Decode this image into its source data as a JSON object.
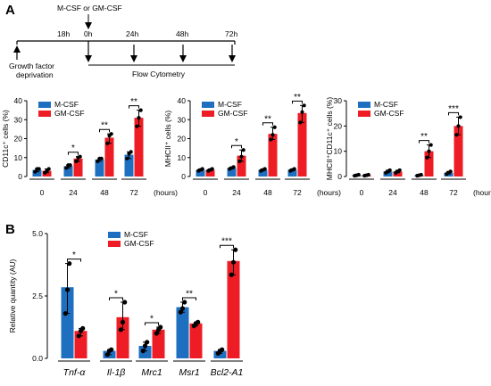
{
  "panel_a": {
    "letter": "A",
    "timeline": {
      "treatment_label": "M-CSF or GM-CSF",
      "deprivation_label_line1": "Growth factor",
      "deprivation_label_line2": "deprivation",
      "time_labels": [
        "18h",
        "0h",
        "24h",
        "48h",
        "72h"
      ],
      "flow_label": "Flow Cytometry"
    }
  },
  "panel_b": {
    "letter": "B"
  },
  "colors": {
    "mcsf": "#1f6fc0",
    "gmcsf": "#ee1c24"
  },
  "chart_data": [
    {
      "type": "bar",
      "id": "cd11c",
      "categories": [
        "0",
        "24",
        "48",
        "72"
      ],
      "extra_x_label": "(hours)",
      "ylabel": "CD11c⁺ cells (%)",
      "ylim": [
        0,
        40
      ],
      "yticks": [
        "0",
        "10",
        "20",
        "30",
        "40"
      ],
      "series": [
        {
          "name": "M-CSF",
          "values": [
            3.5,
            5.5,
            9,
            11.5
          ],
          "points": [
            [
              2.5,
              4,
              4
            ],
            [
              4.5,
              6,
              6
            ],
            [
              8,
              9.5,
              9.5
            ],
            [
              9.5,
              12,
              13
            ]
          ]
        },
        {
          "name": "GM-CSF",
          "values": [
            3,
            9.5,
            20.5,
            31
          ],
          "points": [
            [
              2,
              3,
              4
            ],
            [
              8,
              10,
              10.5
            ],
            [
              17.5,
              21.5,
              22.5
            ],
            [
              26.5,
              31,
              35
            ]
          ]
        }
      ],
      "significance": [
        {
          "category": "24",
          "label": "*"
        },
        {
          "category": "48",
          "label": "**"
        },
        {
          "category": "72",
          "label": "**"
        }
      ]
    },
    {
      "type": "bar",
      "id": "mhcii",
      "categories": [
        "0",
        "24",
        "48",
        "72"
      ],
      "extra_x_label": "(hours)",
      "ylabel": "MHCII⁺ cells (%)",
      "ylim": [
        0,
        40
      ],
      "yticks": [
        "0",
        "10",
        "20",
        "30",
        "40"
      ],
      "series": [
        {
          "name": "M-CSF",
          "values": [
            3.5,
            4.5,
            3.5,
            3.5
          ],
          "points": [
            [
              3,
              3.5,
              4
            ],
            [
              4,
              4.5,
              5
            ],
            [
              3,
              3.5,
              4
            ],
            [
              3,
              3.5,
              4
            ]
          ]
        },
        {
          "name": "GM-CSF",
          "values": [
            3.5,
            11,
            22.5,
            33.5
          ],
          "points": [
            [
              3,
              3.5,
              4
            ],
            [
              8,
              10.5,
              14
            ],
            [
              19.5,
              22,
              26
            ],
            [
              28.5,
              34,
              37.5
            ]
          ]
        }
      ],
      "significance": [
        {
          "category": "24",
          "label": "*"
        },
        {
          "category": "48",
          "label": "**"
        },
        {
          "category": "72",
          "label": "**"
        }
      ]
    },
    {
      "type": "bar",
      "id": "mhcii_cd11c",
      "categories": [
        "0",
        "24",
        "48",
        "72"
      ],
      "extra_x_label": "(hours)",
      "ylabel": "MHCII⁺CD11c⁺ cells (%)",
      "ylim": [
        0,
        30
      ],
      "yticks": [
        "0",
        "10",
        "20",
        "30"
      ],
      "series": [
        {
          "name": "M-CSF",
          "values": [
            0.5,
            2,
            0.5,
            1.5
          ],
          "points": [
            [
              0.3,
              0.5,
              0.7
            ],
            [
              1.5,
              2,
              2.5
            ],
            [
              0.3,
              0.5,
              0.7
            ],
            [
              1,
              1.5,
              2
            ]
          ]
        },
        {
          "name": "GM-CSF",
          "values": [
            0.5,
            2,
            10,
            20
          ],
          "points": [
            [
              0.3,
              0.5,
              0.7
            ],
            [
              1.5,
              2,
              2.5
            ],
            [
              7.5,
              10,
              12.5
            ],
            [
              16.5,
              20,
              23.5
            ]
          ]
        }
      ],
      "significance": [
        {
          "category": "48",
          "label": "**"
        },
        {
          "category": "72",
          "label": "***"
        }
      ]
    },
    {
      "type": "bar",
      "id": "genes",
      "categories": [
        "Tnf-α",
        "Il-1β",
        "Mrc1",
        "Msr1",
        "Bcl2-A1"
      ],
      "ylabel": "Relative quantity (AU)",
      "ylim": [
        0,
        5
      ],
      "yticks": [
        "0.0",
        "2.5",
        "5.0"
      ],
      "series": [
        {
          "name": "M-CSF",
          "values": [
            2.85,
            0.3,
            0.5,
            2.05,
            0.3
          ],
          "points": [
            [
              1.8,
              2.75,
              3.8
            ],
            [
              0.15,
              0.3,
              0.35
            ],
            [
              0.3,
              0.5,
              0.65
            ],
            [
              1.85,
              2.0,
              2.25
            ],
            [
              0.2,
              0.3,
              0.35
            ]
          ]
        },
        {
          "name": "GM-CSF",
          "values": [
            1.1,
            1.65,
            1.15,
            1.4,
            3.9
          ],
          "points": [
            [
              0.9,
              1.1,
              1.2
            ],
            [
              1.15,
              1.45,
              2.25
            ],
            [
              1.0,
              1.15,
              1.25
            ],
            [
              1.3,
              1.4,
              1.45
            ],
            [
              3.35,
              3.85,
              4.35
            ]
          ]
        }
      ],
      "significance": [
        {
          "category": "Tnf-α",
          "label": "*"
        },
        {
          "category": "Il-1β",
          "label": "*"
        },
        {
          "category": "Mrc1",
          "label": "*"
        },
        {
          "category": "Msr1",
          "label": "**"
        },
        {
          "category": "Bcl2-A1",
          "label": "***"
        }
      ]
    }
  ]
}
